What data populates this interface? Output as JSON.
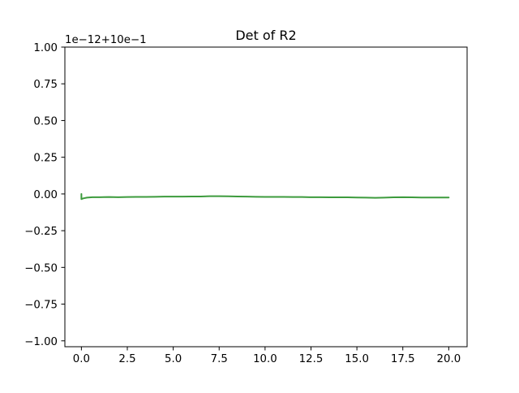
{
  "chart_data": {
    "type": "line",
    "title": "Det of R2",
    "xlabel": "",
    "ylabel": "",
    "offset_label": "1e−12+10e−1",
    "xlim": [
      -0.9,
      21.0
    ],
    "ylim": [
      -1.04,
      1.0
    ],
    "x_ticks": [
      0.0,
      2.5,
      5.0,
      7.5,
      10.0,
      12.5,
      15.0,
      17.5,
      20.0
    ],
    "x_tick_labels": [
      "0.0",
      "2.5",
      "5.0",
      "7.5",
      "10.0",
      "12.5",
      "15.0",
      "17.5",
      "20.0"
    ],
    "y_ticks": [
      1.0,
      0.75,
      0.5,
      0.25,
      0.0,
      -0.25,
      -0.5,
      -0.75,
      -1.0
    ],
    "y_tick_labels": [
      "1.00",
      "0.75",
      "0.50",
      "0.25",
      "0.00",
      "−0.25",
      "−0.50",
      "−0.75",
      "−1.00"
    ],
    "grid": false,
    "legend": "none",
    "series": [
      {
        "color": "#3d9b3d",
        "x": [
          0.0,
          0.0,
          0.1,
          0.3,
          0.6,
          1.0,
          1.5,
          2.0,
          2.5,
          3.0,
          3.5,
          4.0,
          4.5,
          5.0,
          5.5,
          6.0,
          6.5,
          7.0,
          7.5,
          8.0,
          8.5,
          9.0,
          9.5,
          10.0,
          10.5,
          11.0,
          11.5,
          12.0,
          12.5,
          13.0,
          13.5,
          14.0,
          14.5,
          15.0,
          15.5,
          16.0,
          16.5,
          17.0,
          17.5,
          18.0,
          18.5,
          19.0,
          19.5,
          20.0
        ],
        "y": [
          0.0,
          -0.035,
          -0.03,
          -0.025,
          -0.022,
          -0.022,
          -0.021,
          -0.022,
          -0.021,
          -0.02,
          -0.02,
          -0.019,
          -0.018,
          -0.018,
          -0.018,
          -0.017,
          -0.017,
          -0.015,
          -0.015,
          -0.016,
          -0.017,
          -0.018,
          -0.019,
          -0.02,
          -0.02,
          -0.02,
          -0.021,
          -0.021,
          -0.022,
          -0.022,
          -0.023,
          -0.023,
          -0.023,
          -0.024,
          -0.025,
          -0.026,
          -0.025,
          -0.023,
          -0.022,
          -0.023,
          -0.024,
          -0.024,
          -0.024,
          -0.024
        ]
      }
    ]
  }
}
